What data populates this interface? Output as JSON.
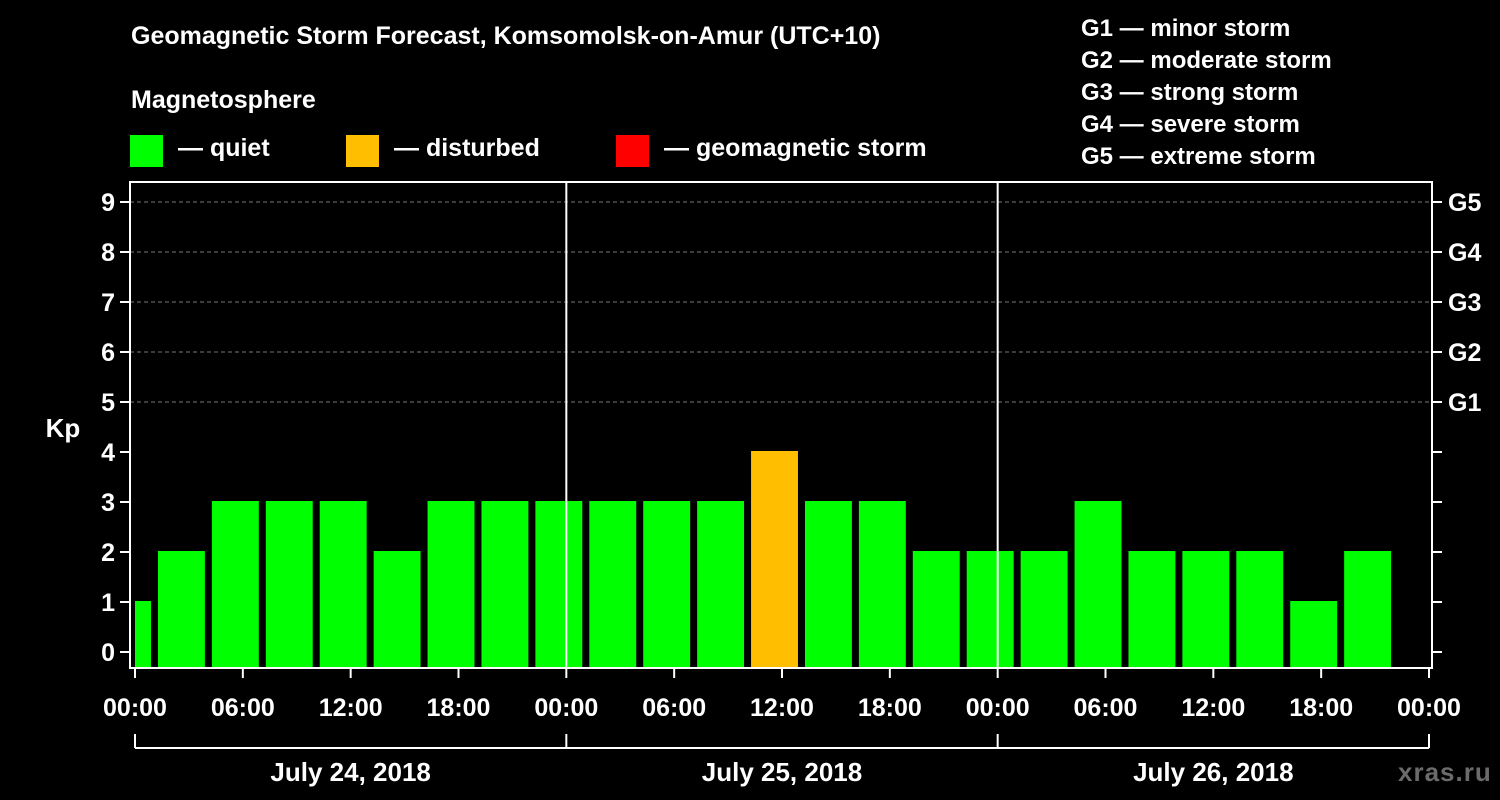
{
  "header": {
    "title": "Geomagnetic Storm Forecast, Komsomolsk-on-Amur (UTC+10)",
    "magnetosphere_label": "Magnetosphere"
  },
  "legend": [
    {
      "color": "#00ff00",
      "label": "— quiet"
    },
    {
      "color": "#ffbf00",
      "label": "— disturbed"
    },
    {
      "color": "#ff0000",
      "label": "— geomagnetic storm"
    }
  ],
  "storm_scale": [
    "G1 — minor storm",
    "G2 — moderate storm",
    "G3 — strong storm",
    "G4 — severe storm",
    "G5 — extreme storm"
  ],
  "watermark": "xras.ru",
  "chart_data": {
    "type": "bar",
    "ylabel": "Kp",
    "ylim": [
      0,
      9
    ],
    "yticks": [
      "0",
      "1",
      "2",
      "3",
      "4",
      "5",
      "6",
      "7",
      "8",
      "9"
    ],
    "right_ticks": [
      {
        "value": 5,
        "label": "G1"
      },
      {
        "value": 6,
        "label": "G2"
      },
      {
        "value": 7,
        "label": "G3"
      },
      {
        "value": 8,
        "label": "G4"
      },
      {
        "value": 9,
        "label": "G5"
      }
    ],
    "time_labels": [
      "00:00",
      "06:00",
      "12:00",
      "18:00",
      "00:00",
      "06:00",
      "12:00",
      "18:00",
      "00:00",
      "06:00",
      "12:00",
      "18:00",
      "00:00"
    ],
    "days": [
      "July 24, 2018",
      "July 25, 2018",
      "July 26, 2018"
    ],
    "interval_hours": 3,
    "first_bar_hours": 1,
    "grid": true,
    "values": [
      1,
      2,
      3,
      3,
      3,
      2,
      3,
      3,
      3,
      3,
      3,
      3,
      4,
      3,
      3,
      2,
      2,
      2,
      3,
      2,
      2,
      2,
      1,
      2
    ],
    "colors": {
      "quiet": "#00ff00",
      "disturbed": "#ffbf00",
      "storm": "#ff0000"
    }
  }
}
